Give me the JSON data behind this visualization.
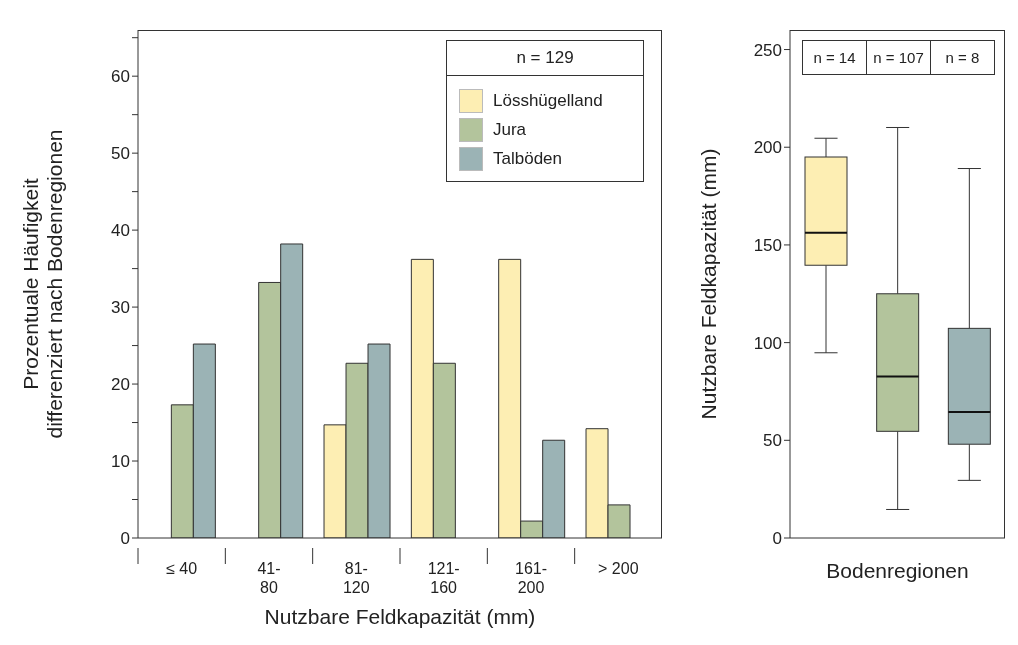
{
  "chart_data": [
    {
      "type": "bar",
      "xlabel": "Nutzbare Feldkapazität (mm)",
      "ylabel": "Prozentuale Häufigkeit differenziert nach Bodenregionen",
      "legend_title": "n = 129",
      "categories": [
        "≤ 40",
        "41-80",
        "81-120",
        "121-160",
        "161-200",
        "> 200"
      ],
      "series": [
        {
          "name": "Lösshügelland",
          "color": "#fdeeb3",
          "values": [
            null,
            null,
            14.7,
            36.2,
            36.2,
            14.2
          ]
        },
        {
          "name": "Jura",
          "color": "#b3c49c",
          "values": [
            17.3,
            33.2,
            22.7,
            22.7,
            2.2,
            4.3
          ]
        },
        {
          "name": "Talböden",
          "color": "#9bb3b5",
          "values": [
            25.2,
            38.2,
            25.2,
            null,
            12.7,
            null
          ]
        }
      ],
      "ylim": [
        0,
        66
      ],
      "yticks": [
        0,
        {
          "value": 5,
          "label": null
        },
        10,
        {
          "value": 15,
          "label": null
        },
        20,
        {
          "value": 25,
          "label": null
        },
        30,
        {
          "value": 35,
          "label": null
        },
        40,
        {
          "value": 45,
          "label": null
        },
        50,
        {
          "value": 55,
          "label": null
        },
        60,
        {
          "value": 65,
          "label": null
        }
      ],
      "legend": "top right"
    },
    {
      "type": "box",
      "xlabel": "Bodenregionen",
      "ylabel": "Nutzbare Feldkapazität (mm)",
      "categories": [
        null,
        null,
        null
      ],
      "colors": [
        "#fdeeb3",
        "#b3c49c",
        "#9bb3b5"
      ],
      "boxes": [
        {
          "low": 94.8,
          "q1": 139.6,
          "median": 156.2,
          "q3": 195,
          "high": 204.6
        },
        {
          "low": 14.6,
          "q1": 54.6,
          "median": 82.7,
          "q3": 125,
          "high": 210.1
        },
        {
          "low": 29.5,
          "q1": 48,
          "median": 64.5,
          "q3": 107.3,
          "high": 189.1
        }
      ],
      "annotations": [
        "n = 14",
        "n = 107",
        "n = 8"
      ],
      "ylim": [
        0,
        260
      ],
      "yticks": [
        0,
        50,
        100,
        150,
        200,
        250
      ]
    }
  ]
}
